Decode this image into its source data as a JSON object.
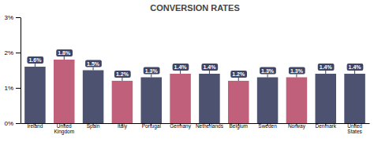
{
  "chart_data": {
    "type": "bar",
    "title": "CONVERSION RATES",
    "categories": [
      "Ireland",
      "United\nKingdom",
      "Spain",
      "Italy",
      "Portugal",
      "Germany",
      "Netherlands",
      "Belgium",
      "Sweden",
      "Norway",
      "Denmark",
      "United\nStates"
    ],
    "values": [
      1.6,
      1.8,
      1.5,
      1.2,
      1.3,
      1.4,
      1.4,
      1.2,
      1.3,
      1.3,
      1.4,
      1.4
    ],
    "value_labels": [
      "1.6%",
      "1.8%",
      "1.5%",
      "1.2%",
      "1.3%",
      "1.4%",
      "1.4%",
      "1.2%",
      "1.3%",
      "1.3%",
      "1.4%",
      "1.4%"
    ],
    "colors": [
      "#4d5270",
      "#c0607a",
      "#4d5270",
      "#c0607a",
      "#4d5270",
      "#c0607a",
      "#4d5270",
      "#c0607a",
      "#4d5270",
      "#c0607a",
      "#4d5270",
      "#4d5270"
    ],
    "data_labels": true,
    "ylim": [
      0,
      3
    ],
    "yticks": [
      {
        "value": 0,
        "label": "0%"
      },
      {
        "value": 1,
        "label": "1%"
      },
      {
        "value": 2,
        "label": "2%"
      },
      {
        "value": 3,
        "label": "3%"
      }
    ],
    "grid": false
  }
}
